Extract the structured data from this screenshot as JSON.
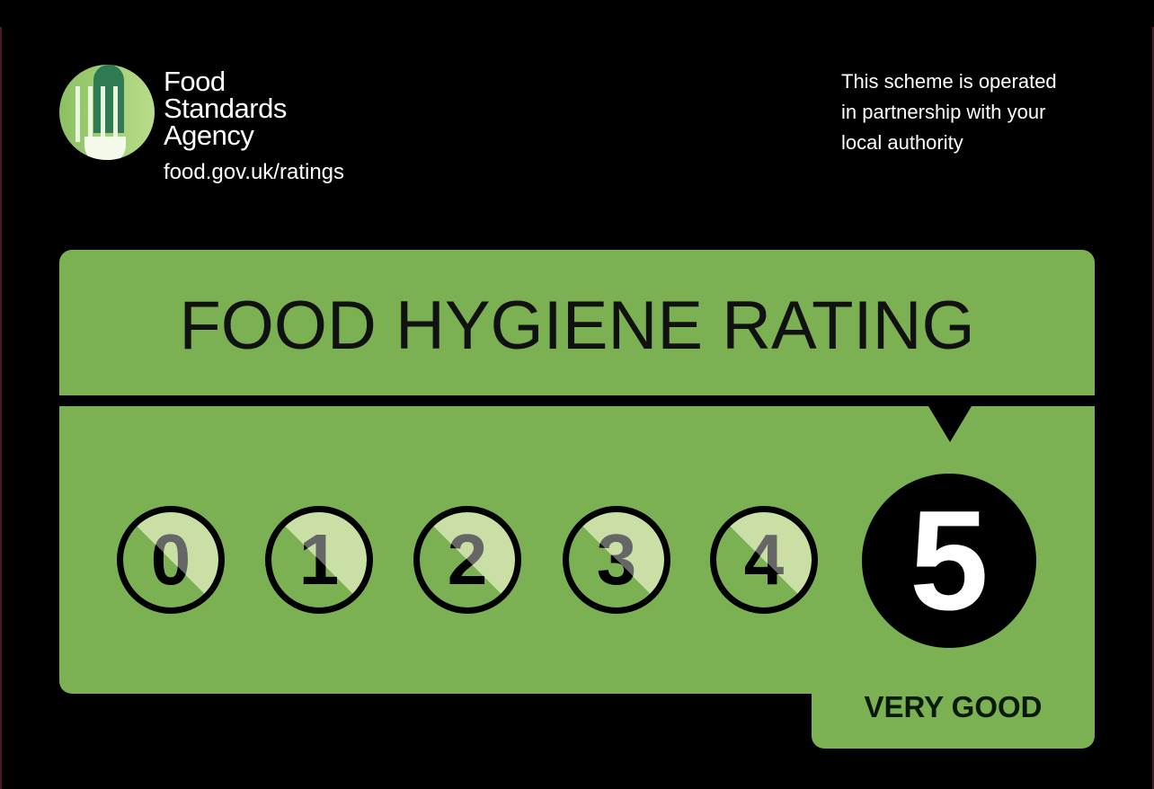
{
  "header": {
    "agency_name_lines": [
      "Food",
      "Standards",
      "Agency"
    ],
    "agency_url": "food.gov.uk/ratings",
    "scheme_note_lines": [
      "This scheme is operated",
      "in partnership with your",
      "local authority"
    ]
  },
  "rating": {
    "title": "FOOD HYGIENE RATING",
    "scale": [
      "0",
      "1",
      "2",
      "3",
      "4"
    ],
    "selected": "5",
    "selected_label": "VERY GOOD"
  },
  "colors": {
    "background": "#000000",
    "panel_green": "#7bb053",
    "inactive_circle_highlight": "#c9dfa6",
    "selected_circle": "#000000"
  }
}
